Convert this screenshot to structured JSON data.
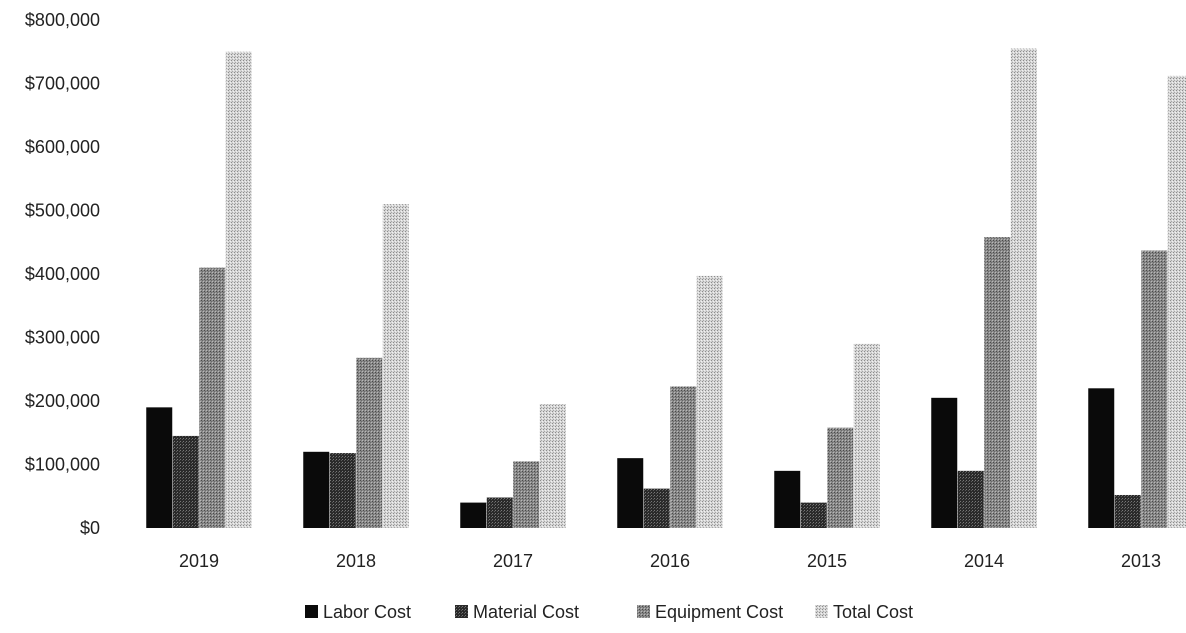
{
  "chart_data": {
    "type": "bar",
    "categories": [
      "2019",
      "2018",
      "2017",
      "2016",
      "2015",
      "2014",
      "2013"
    ],
    "series": [
      {
        "name": "Labor Cost",
        "values": [
          190000,
          120000,
          40000,
          110000,
          90000,
          205000,
          220000
        ]
      },
      {
        "name": "Material Cost",
        "values": [
          145000,
          118000,
          48000,
          62000,
          40000,
          90000,
          52000
        ]
      },
      {
        "name": "Equipment Cost",
        "values": [
          410000,
          268000,
          105000,
          223000,
          158000,
          458000,
          437000
        ]
      },
      {
        "name": "Total Cost",
        "values": [
          750000,
          510000,
          195000,
          397000,
          290000,
          755000,
          712000
        ]
      }
    ],
    "ylim": [
      0,
      800000
    ],
    "y_ticks": [
      "$0",
      "$100,000",
      "$200,000",
      "$300,000",
      "$400,000",
      "$500,000",
      "$600,000",
      "$700,000",
      "$800,000"
    ],
    "grid": false,
    "legend_position": "bottom",
    "title": "",
    "xlabel": "",
    "ylabel": ""
  },
  "colors": {
    "labor": "#0a0a0a",
    "material": "#3c3c3c",
    "equipment": "#8a8a8a",
    "total": "#d2d2d2"
  }
}
